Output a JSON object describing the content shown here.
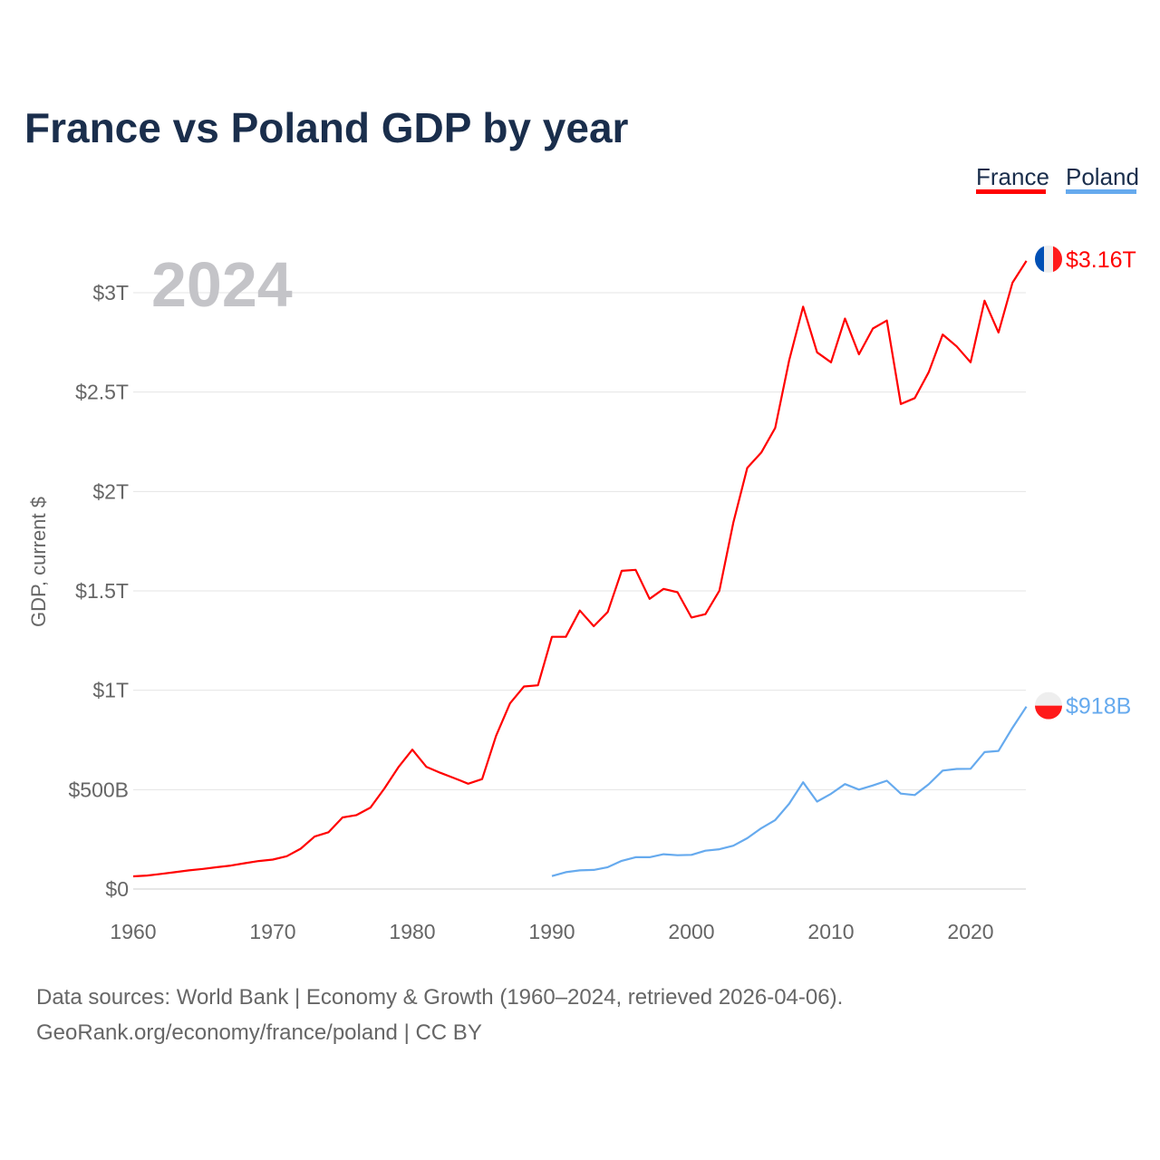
{
  "chart_data": {
    "type": "line",
    "title": "France vs Poland GDP by year",
    "ylabel": "GDP, current $",
    "xlabel": "",
    "year_watermark": "2024",
    "xlim": [
      1960,
      2024
    ],
    "ylim": [
      0,
      3.3
    ],
    "y_unit": "trillion USD",
    "yticks": [
      {
        "v": 0,
        "label": "$0"
      },
      {
        "v": 0.5,
        "label": "$500B"
      },
      {
        "v": 1,
        "label": "$1T"
      },
      {
        "v": 1.5,
        "label": "$1.5T"
      },
      {
        "v": 2,
        "label": "$2T"
      },
      {
        "v": 2.5,
        "label": "$2.5T"
      },
      {
        "v": 3,
        "label": "$3T"
      }
    ],
    "xticks": [
      1960,
      1970,
      1980,
      1990,
      2000,
      2010,
      2020
    ],
    "grid": true,
    "legend_position": "top-right",
    "series": [
      {
        "name": "France",
        "color": "#ff0000",
        "end_label": "$3.16T",
        "start_year": 1960,
        "values": [
          0.064,
          0.068,
          0.076,
          0.085,
          0.094,
          0.101,
          0.11,
          0.118,
          0.13,
          0.141,
          0.148,
          0.165,
          0.203,
          0.264,
          0.286,
          0.36,
          0.372,
          0.41,
          0.506,
          0.613,
          0.701,
          0.615,
          0.585,
          0.558,
          0.53,
          0.553,
          0.771,
          0.934,
          1.019,
          1.025,
          1.269,
          1.269,
          1.401,
          1.322,
          1.394,
          1.601,
          1.606,
          1.46,
          1.51,
          1.493,
          1.366,
          1.383,
          1.501,
          1.844,
          2.119,
          2.196,
          2.32,
          2.66,
          2.93,
          2.7,
          2.65,
          2.87,
          2.69,
          2.82,
          2.86,
          2.44,
          2.47,
          2.6,
          2.79,
          2.73,
          2.65,
          2.96,
          2.8,
          3.05,
          3.16
        ]
      },
      {
        "name": "Poland",
        "color": "#66aaee",
        "end_label": "$918B",
        "start_year": 1990,
        "values": [
          0.065,
          0.085,
          0.094,
          0.096,
          0.11,
          0.142,
          0.16,
          0.16,
          0.175,
          0.17,
          0.172,
          0.193,
          0.2,
          0.218,
          0.256,
          0.306,
          0.347,
          0.429,
          0.537,
          0.44,
          0.479,
          0.528,
          0.5,
          0.521,
          0.545,
          0.48,
          0.473,
          0.527,
          0.596,
          0.604,
          0.605,
          0.689,
          0.695,
          0.811,
          0.918
        ]
      }
    ]
  },
  "footer": {
    "line1": "Data sources: World Bank | Economy & Growth (1960–2024, retrieved 2026-04-06).",
    "line2": "GeoRank.org/economy/france/poland | CC BY"
  },
  "colors": {
    "title": "#1a2e4c",
    "axis_text": "#666666",
    "grid": "#e4e4e4",
    "watermark": "#c4c4c8"
  }
}
